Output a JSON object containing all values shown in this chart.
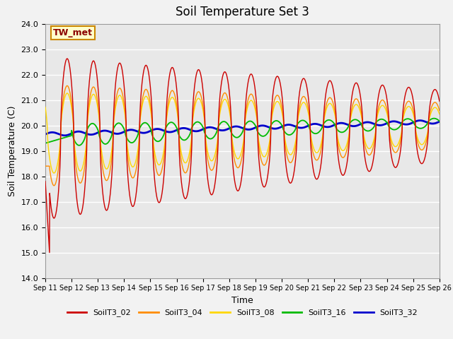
{
  "title": "Soil Temperature Set 3",
  "xlabel": "Time",
  "ylabel": "Soil Temperature (C)",
  "ylim": [
    14.0,
    24.0
  ],
  "yticks": [
    14.0,
    15.0,
    16.0,
    17.0,
    18.0,
    19.0,
    20.0,
    21.0,
    22.0,
    23.0,
    24.0
  ],
  "x_tick_labels": [
    "Sep 11",
    "Sep 12",
    "Sep 13",
    "Sep 14",
    "Sep 15",
    "Sep 16",
    "Sep 17",
    "Sep 18",
    "Sep 19",
    "Sep 20",
    "Sep 21",
    "Sep 22",
    "Sep 23",
    "Sep 24",
    "Sep 25",
    "Sep 26"
  ],
  "annotation_text": "TW_met",
  "annotation_color": "#8B0000",
  "annotation_bg": "#FFFFCC",
  "annotation_border": "#CC8800",
  "series_colors": {
    "SoilT3_02": "#CC0000",
    "SoilT3_04": "#FF8C00",
    "SoilT3_08": "#FFD700",
    "SoilT3_16": "#00BB00",
    "SoilT3_32": "#0000CC"
  },
  "legend_labels": [
    "SoilT3_02",
    "SoilT3_04",
    "SoilT3_08",
    "SoilT3_16",
    "SoilT3_32"
  ],
  "bg_color": "#E8E8E8",
  "grid_color": "#FFFFFF",
  "title_fontsize": 12,
  "axis_fontsize": 9,
  "tick_fontsize": 8
}
